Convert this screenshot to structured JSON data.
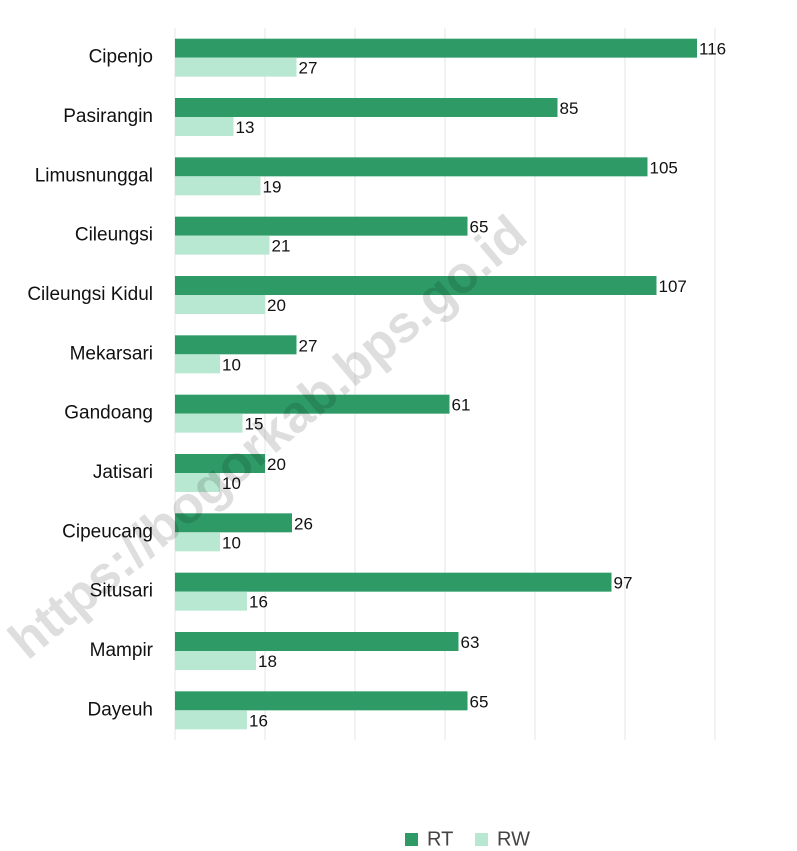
{
  "chart_data": {
    "type": "bar",
    "orientation": "horizontal",
    "categories": [
      "Cipenjo",
      "Pasirangin",
      "Limusnunggal",
      "Cileungsi",
      "Cileungsi Kidul",
      "Mekarsari",
      "Gandoang",
      "Jatisari",
      "Cipeucang",
      "Situsari",
      "Mampir",
      "Dayeuh"
    ],
    "series": [
      {
        "name": "RT",
        "color": "#2e9b67",
        "values": [
          116,
          85,
          105,
          65,
          107,
          27,
          61,
          20,
          26,
          97,
          63,
          65
        ]
      },
      {
        "name": "RW",
        "color": "#b9e8d2",
        "values": [
          27,
          13,
          19,
          21,
          20,
          10,
          15,
          10,
          10,
          16,
          18,
          16
        ]
      }
    ],
    "xlim": [
      0,
      136
    ],
    "xticks": [
      0,
      20,
      40,
      60,
      80,
      100,
      120
    ],
    "grid": true,
    "legend": "bottom",
    "watermark": "https://bogorkab.bps.go.id"
  }
}
